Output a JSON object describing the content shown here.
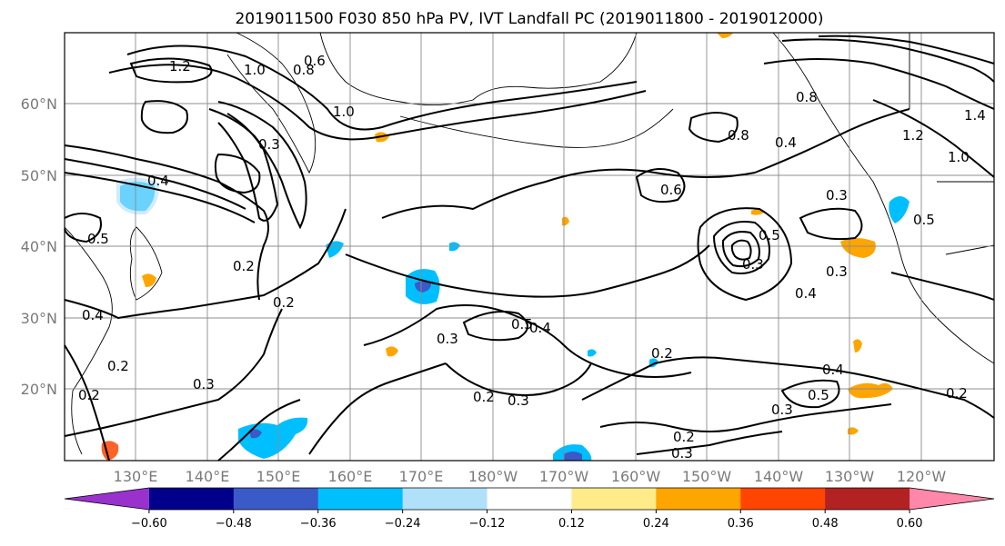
{
  "title": "2019011500 F030 850 hPa PV, IVT Landfall PC (2019011800 - 2019012000)",
  "lat_labels": [
    "60°N",
    "50°N",
    "40°N",
    "30°N",
    "20°N"
  ],
  "lon_labels": [
    "130°E",
    "140°E",
    "150°E",
    "160°E",
    "170°E",
    "180°W",
    "170°W",
    "160°W",
    "150°W",
    "140°W",
    "130°W",
    "120°W"
  ],
  "colorbar": {
    "colors": [
      "#9932cc",
      "#00008b",
      "#3a5bc7",
      "#00bfff",
      "#b0e0fa",
      "#ffffff",
      "#ffeb8a",
      "#ffa500",
      "#ff4500",
      "#b22222",
      "#ff88aa"
    ],
    "tick_labels": [
      "−0.60",
      "−0.48",
      "−0.36",
      "−0.24",
      "−0.12",
      "0.12",
      "0.24",
      "0.36",
      "0.48",
      "0.60"
    ]
  },
  "contour_labels": [
    "1.2",
    "1.0",
    "0.8",
    "0.6",
    "1.0",
    "0.3",
    "0.4",
    "0.2",
    "0.2",
    "0.4",
    "0.3",
    "0.5",
    "0.4",
    "0.3",
    "0.2",
    "0.3",
    "0.2",
    "0.3",
    "0.5",
    "0.2",
    "0.3",
    "0.8",
    "0.4",
    "0.3",
    "0.5",
    "0.3",
    "0.4",
    "0.2",
    "0.4",
    "0.5",
    "0.3",
    "0.2",
    "0.8",
    "0.6",
    "1.2",
    "1.0",
    "1.4",
    "0.5",
    "0.2"
  ],
  "shading": {
    "blue_light": "#b0e0fa",
    "blue": "#00bfff",
    "blue_dark": "#3a5bc7",
    "orange_light": "#ffeb8a",
    "orange": "#ffa500"
  }
}
